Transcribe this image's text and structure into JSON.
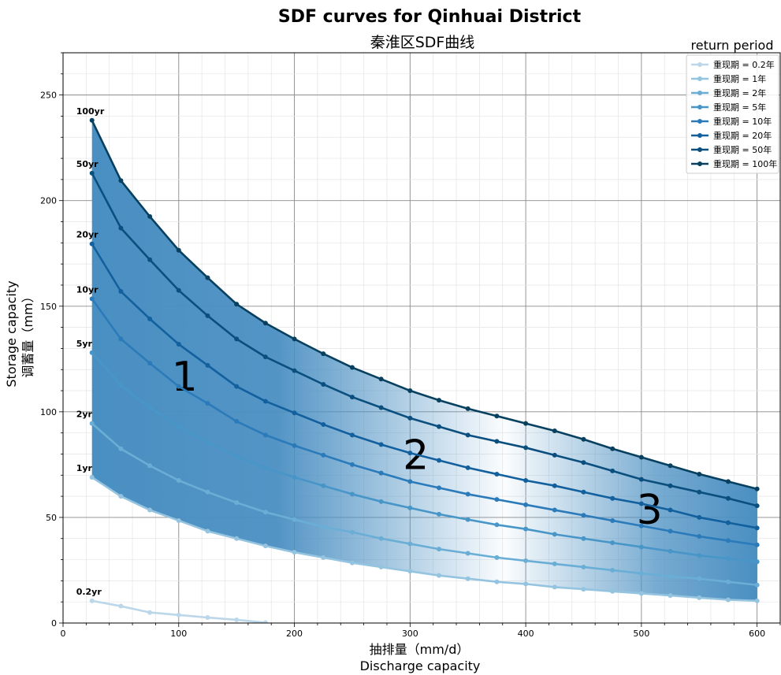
{
  "chart_data": {
    "type": "line",
    "title": "SDF curves for Qinhuai District",
    "subtitle": "秦淮区SDF曲线",
    "xlabel_cn": "抽排量（mm/d）",
    "xlabel_en": "Discharge capacity",
    "ylabel_en": "Storage capacity",
    "ylabel_cn": "调蓄量（mm）",
    "xlim": [
      0,
      620
    ],
    "ylim": [
      0,
      270
    ],
    "xticks": [
      0,
      100,
      200,
      300,
      400,
      500,
      600
    ],
    "yticks": [
      0,
      50,
      100,
      150,
      200,
      250
    ],
    "grid": true,
    "legend_title": "return period",
    "legend_position": "top-right",
    "series": [
      {
        "name": "重现期 = 0.2年",
        "curve_label": "0.2yr",
        "color": "#bcd7e9",
        "x": [
          25,
          50,
          75,
          100,
          125,
          150,
          175
        ],
        "values": [
          10.5,
          8,
          5,
          3.8,
          2.6,
          1.5,
          0.2
        ]
      },
      {
        "name": "重现期 = 1年",
        "curve_label": "1yr",
        "color": "#94c4df",
        "x": [
          25,
          50,
          75,
          100,
          125,
          150,
          175,
          200,
          225,
          250,
          275,
          300,
          325,
          350,
          375,
          400,
          425,
          450,
          475,
          500,
          525,
          550,
          575,
          600
        ],
        "values": [
          69,
          60,
          53.5,
          48.5,
          43.5,
          40,
          36.5,
          33.5,
          31,
          28.5,
          26.5,
          24.5,
          22.5,
          21,
          19.5,
          18.5,
          17,
          16,
          15,
          14,
          13,
          12,
          11,
          10.5
        ]
      },
      {
        "name": "重现期 = 2年",
        "curve_label": "2yr",
        "color": "#6aaed6",
        "x": [
          25,
          50,
          75,
          100,
          125,
          150,
          175,
          200,
          225,
          250,
          275,
          300,
          325,
          350,
          375,
          400,
          425,
          450,
          475,
          500,
          525,
          550,
          575,
          600
        ],
        "values": [
          94.5,
          82.5,
          74.5,
          67.5,
          62,
          57,
          52.5,
          49,
          45.5,
          43,
          40,
          37.5,
          35,
          33,
          31,
          29.5,
          28,
          26.5,
          25,
          23.5,
          22,
          21,
          19.5,
          18
        ]
      },
      {
        "name": "重现期 = 5年",
        "curve_label": "5yr",
        "color": "#4896c8",
        "x": [
          25,
          50,
          75,
          100,
          125,
          150,
          175,
          200,
          225,
          250,
          275,
          300,
          325,
          350,
          375,
          400,
          425,
          450,
          475,
          500,
          525,
          550,
          575,
          600
        ],
        "values": [
          128,
          112.5,
          102,
          93,
          85.5,
          79,
          73.5,
          69,
          65,
          61,
          57.5,
          54.5,
          51.5,
          49,
          46.5,
          44.5,
          42,
          40,
          38,
          36,
          34,
          32,
          30.5,
          29
        ]
      },
      {
        "name": "重现期 = 10年",
        "curve_label": "10yr",
        "color": "#2b7bba",
        "x": [
          25,
          50,
          75,
          100,
          125,
          150,
          175,
          200,
          225,
          250,
          275,
          300,
          325,
          350,
          375,
          400,
          425,
          450,
          475,
          500,
          525,
          550,
          575,
          600
        ],
        "values": [
          153.5,
          134.5,
          123,
          112,
          104,
          95.5,
          89,
          84,
          79.5,
          75,
          71,
          67,
          64,
          61,
          58.5,
          56,
          53.5,
          51,
          48.5,
          46,
          43.5,
          41,
          39,
          37
        ]
      },
      {
        "name": "重现期 = 20年",
        "curve_label": "20yr",
        "color": "#12609e",
        "x": [
          25,
          50,
          75,
          100,
          125,
          150,
          175,
          200,
          225,
          250,
          275,
          300,
          325,
          350,
          375,
          400,
          425,
          450,
          475,
          500,
          525,
          550,
          575,
          600
        ],
        "values": [
          179.5,
          157,
          144,
          132,
          122,
          112,
          105,
          99.5,
          94,
          89,
          84.5,
          80.5,
          77,
          73.5,
          70.5,
          67.5,
          65,
          62,
          59,
          56.5,
          53.5,
          50,
          47.5,
          45
        ]
      },
      {
        "name": "重现期 = 50年",
        "curve_label": "50yr",
        "color": "#0b4f7f",
        "x": [
          25,
          50,
          75,
          100,
          125,
          150,
          175,
          200,
          225,
          250,
          275,
          300,
          325,
          350,
          375,
          400,
          425,
          450,
          475,
          500,
          525,
          550,
          575,
          600
        ],
        "values": [
          213,
          187,
          172,
          157.5,
          145.5,
          134.5,
          126,
          119.5,
          113,
          107,
          102,
          97,
          93,
          89,
          86,
          83,
          79.5,
          76,
          72,
          68,
          65,
          62,
          59,
          55.5
        ]
      },
      {
        "name": "重现期 = 100年",
        "curve_label": "100yr",
        "color": "#08405f",
        "x": [
          25,
          50,
          75,
          100,
          125,
          150,
          175,
          200,
          225,
          250,
          275,
          300,
          325,
          350,
          375,
          400,
          425,
          450,
          475,
          500,
          525,
          550,
          575,
          600
        ],
        "values": [
          238,
          209.5,
          192.5,
          176.5,
          163.5,
          151,
          142,
          134.5,
          127.5,
          121,
          115.5,
          110,
          105.5,
          101.5,
          98,
          94.5,
          91,
          87,
          82.5,
          78.5,
          74.5,
          70.5,
          67,
          63.5
        ]
      }
    ],
    "region_labels": [
      {
        "text": "1",
        "x": 105,
        "y": 110
      },
      {
        "text": "2",
        "x": 305,
        "y": 73
      },
      {
        "text": "3",
        "x": 507,
        "y": 47
      }
    ],
    "fill_between": {
      "lower": "重现期 = 1年",
      "upper": "重现期 = 100年",
      "color": "#4a8fc2"
    }
  }
}
